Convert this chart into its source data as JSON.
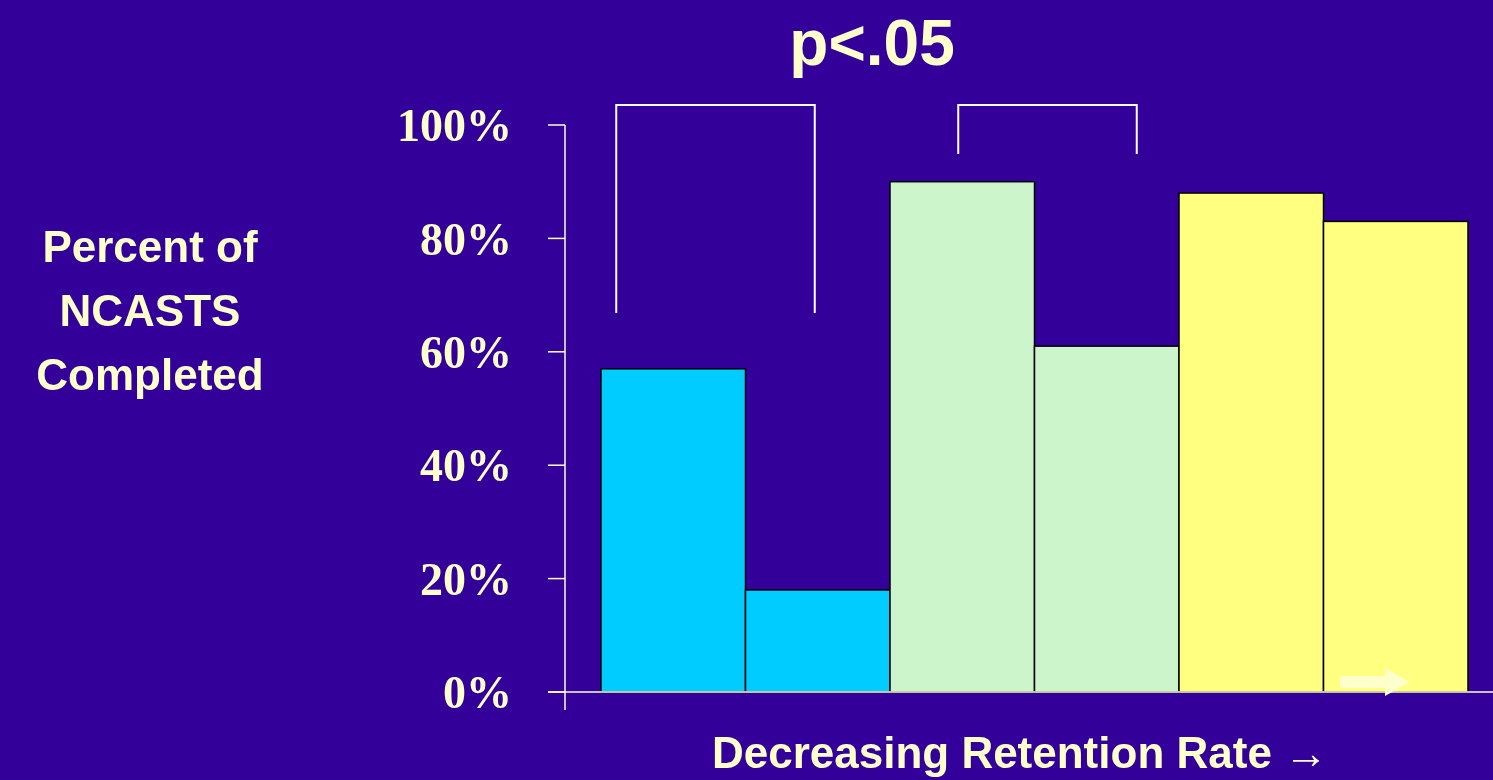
{
  "chart_data": {
    "type": "bar",
    "ylabel": "Percent of NCASTS Completed",
    "xlabel": "Decreasing Retention Rate →",
    "annotations": [
      "p<.05"
    ],
    "categories": [
      null,
      null,
      null,
      null,
      null,
      null
    ],
    "values": [
      57,
      18,
      90,
      61,
      88,
      83
    ],
    "colors": [
      "#00ccff",
      "#00ccff",
      "#ccf5cc",
      "#ccf5cc",
      "#ffff80",
      "#ffff80"
    ],
    "ylim": [
      0,
      100
    ],
    "yticks": [
      {
        "value": 0,
        "label": "0%"
      },
      {
        "value": 20,
        "label": "20%"
      },
      {
        "value": 40,
        "label": "40%"
      },
      {
        "value": 60,
        "label": "60%"
      },
      {
        "value": 80,
        "label": "80%"
      },
      {
        "value": 100,
        "label": "100%"
      }
    ],
    "grid": false
  }
}
